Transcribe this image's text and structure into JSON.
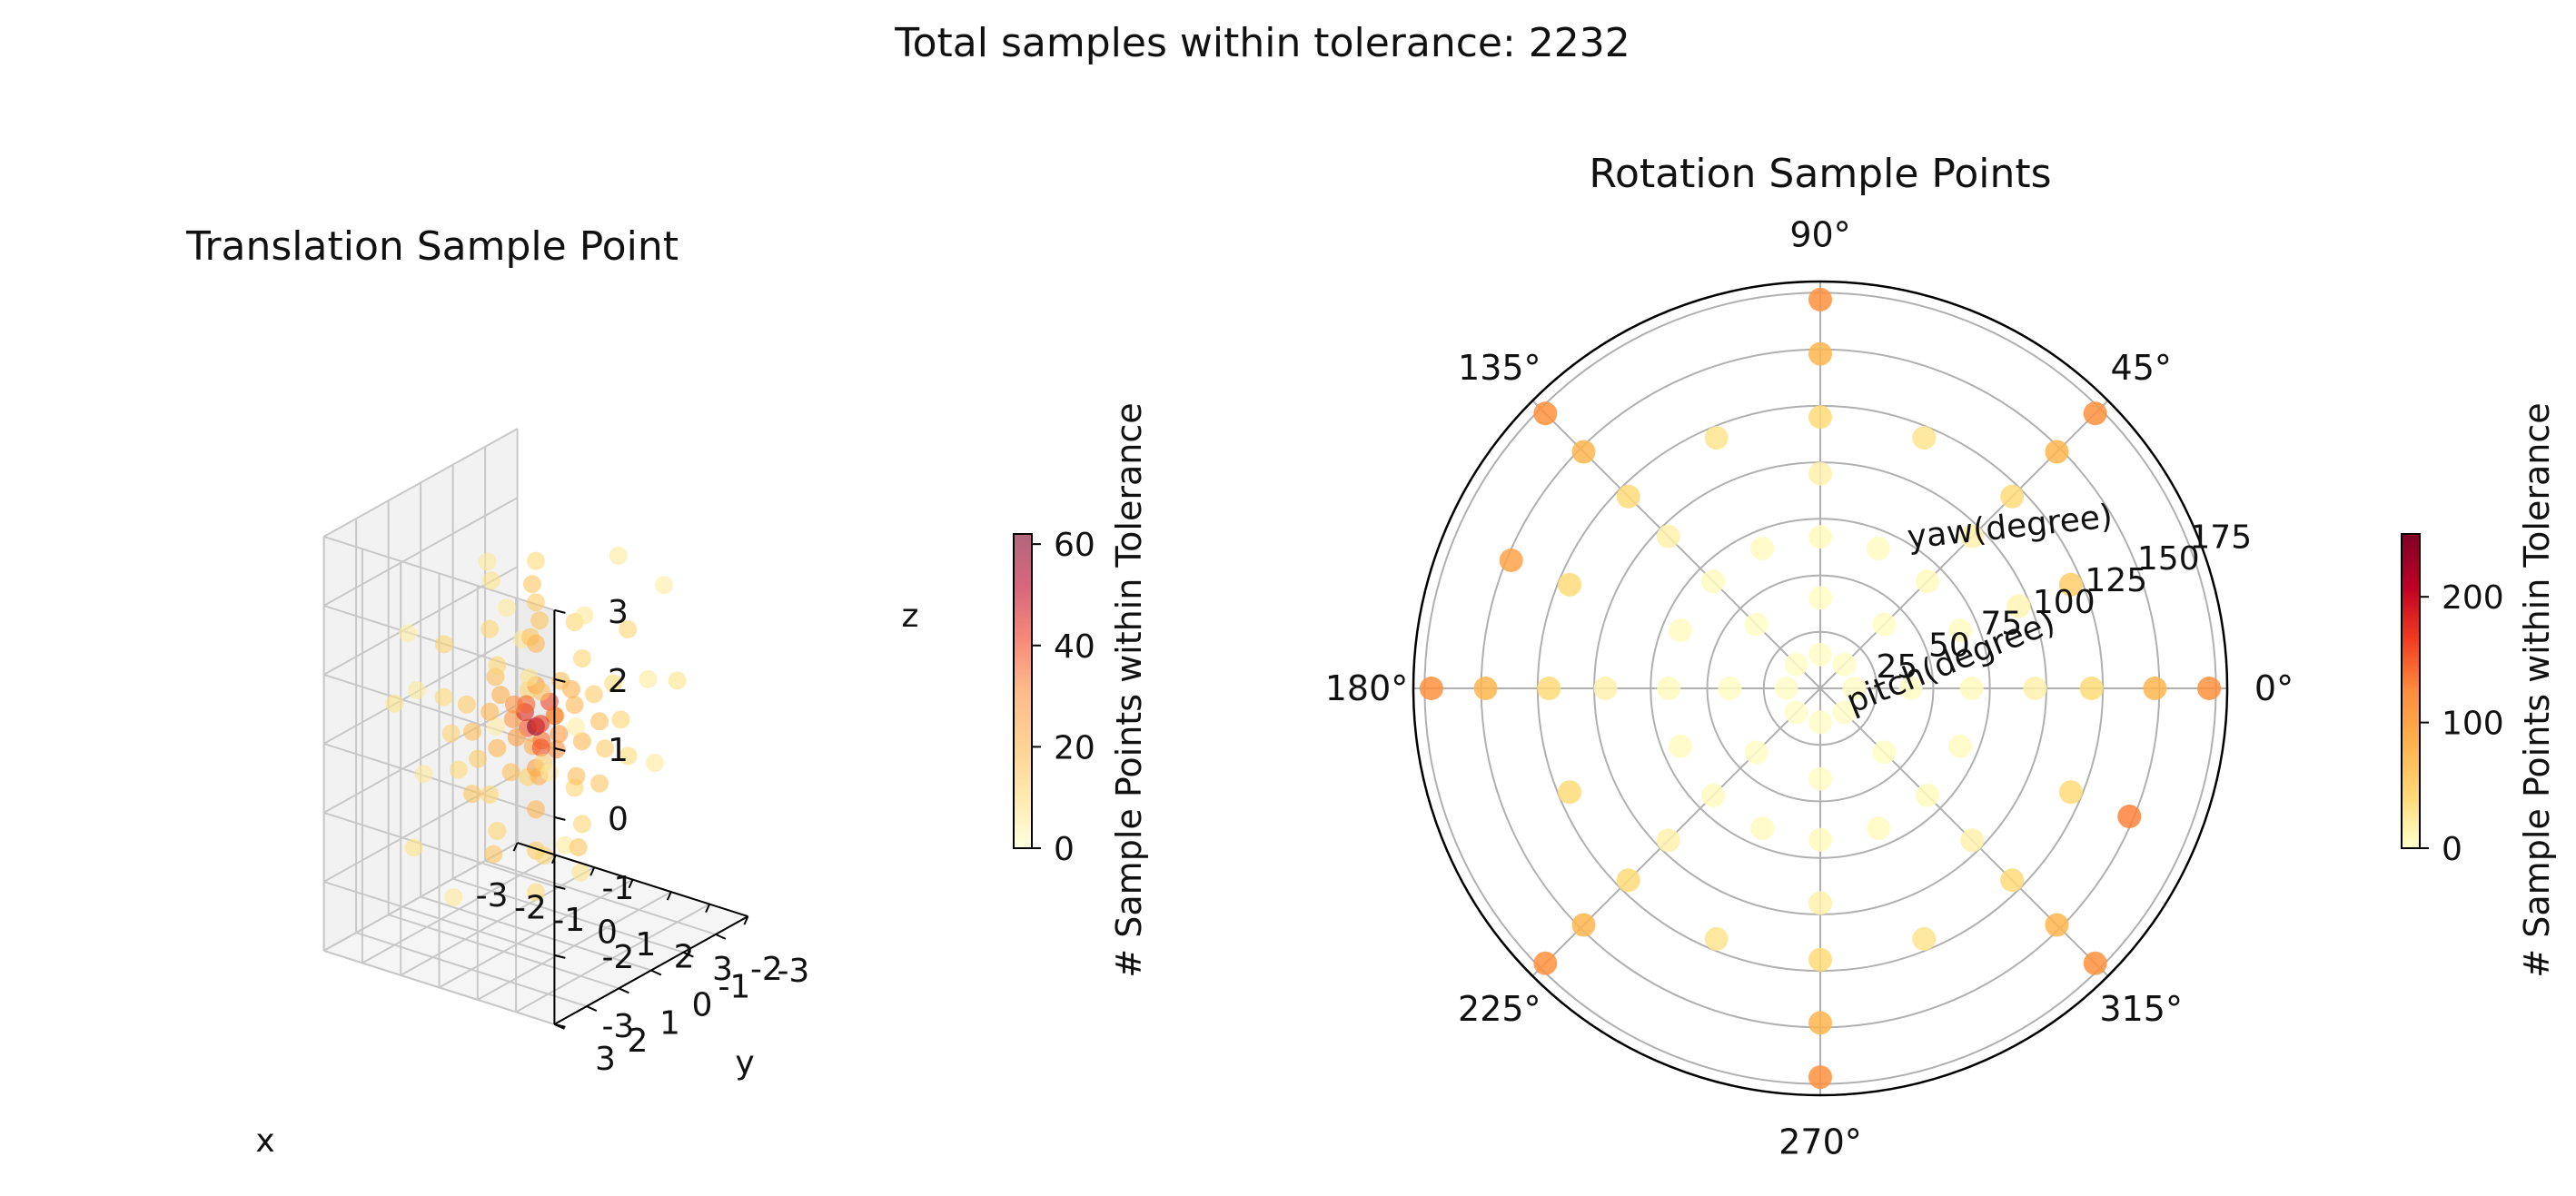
{
  "figure": {
    "suptitle": "Total samples within tolerance: 2232"
  },
  "chart_data": [
    {
      "type": "scatter3d",
      "title": "Translation Sample Point",
      "xlabel": "x",
      "ylabel": "y",
      "zlabel": "z",
      "xlim": [
        -3,
        3
      ],
      "ylim": [
        -3,
        3
      ],
      "zlim": [
        -3,
        3
      ],
      "xticks": [
        "-3",
        "-2",
        "-1",
        "0",
        "1",
        "2",
        "3"
      ],
      "yticks": [
        "-2",
        "-1",
        "0",
        "1",
        "2",
        "3"
      ],
      "yticks_extra": [
        "-3"
      ],
      "zticks": [
        "3",
        "2",
        "1",
        "0",
        "-1",
        "-2",
        "-3"
      ],
      "grid": true,
      "colormap": [
        "#ffffcc",
        "#fed976",
        "#feb24c",
        "#fd8d3c",
        "#f03b20",
        "#bd0026",
        "#800026"
      ],
      "points": [
        {
          "x": 0,
          "y": 0,
          "z": 0,
          "c": 60
        },
        {
          "x": -0.2,
          "y": 0.1,
          "z": 0.2,
          "c": 45
        },
        {
          "x": 0.2,
          "y": 0.1,
          "z": 0.1,
          "c": 42
        },
        {
          "x": 0.1,
          "y": -0.3,
          "z": 0.3,
          "c": 40
        },
        {
          "x": -0.3,
          "y": -0.1,
          "z": -0.1,
          "c": 38
        },
        {
          "x": 0.3,
          "y": 0.2,
          "z": -0.2,
          "c": 38
        },
        {
          "x": 0.0,
          "y": 0.3,
          "z": 0.4,
          "c": 36
        },
        {
          "x": -0.1,
          "y": -0.3,
          "z": -0.3,
          "c": 34
        },
        {
          "x": 0.4,
          "y": -0.1,
          "z": 0.2,
          "c": 32
        },
        {
          "x": -0.4,
          "y": 0.2,
          "z": 0.3,
          "c": 30
        },
        {
          "x": 0.2,
          "y": -0.4,
          "z": -0.4,
          "c": 30
        },
        {
          "x": -0.6,
          "y": 0,
          "z": 0,
          "c": 28
        },
        {
          "x": 0.6,
          "y": 0,
          "z": 0,
          "c": 28
        },
        {
          "x": 0,
          "y": -0.6,
          "z": 0,
          "c": 26
        },
        {
          "x": 0,
          "y": 0.6,
          "z": 0,
          "c": 26
        },
        {
          "x": 0,
          "y": 0,
          "z": 0.6,
          "c": 26
        },
        {
          "x": 0,
          "y": 0,
          "z": -0.6,
          "c": 26
        },
        {
          "x": -0.5,
          "y": 0.5,
          "z": 0.5,
          "c": 22
        },
        {
          "x": 0.5,
          "y": -0.5,
          "z": 0.5,
          "c": 22
        },
        {
          "x": -0.5,
          "y": -0.5,
          "z": -0.5,
          "c": 22
        },
        {
          "x": 0.5,
          "y": 0.5,
          "z": -0.5,
          "c": 22
        },
        {
          "x": -1.2,
          "y": 0,
          "z": 0,
          "c": 20
        },
        {
          "x": 1.2,
          "y": 0,
          "z": 0,
          "c": 20
        },
        {
          "x": 0,
          "y": -1.2,
          "z": 0,
          "c": 20
        },
        {
          "x": 0,
          "y": 1.2,
          "z": 0,
          "c": 20
        },
        {
          "x": 0,
          "y": 0,
          "z": 1.2,
          "c": 20
        },
        {
          "x": 0,
          "y": 0,
          "z": -1.2,
          "c": 20
        },
        {
          "x": -0.9,
          "y": 0.9,
          "z": 0,
          "c": 18
        },
        {
          "x": 0.9,
          "y": -0.9,
          "z": 0,
          "c": 18
        },
        {
          "x": 0.9,
          "y": 0.9,
          "z": 0.9,
          "c": 16
        },
        {
          "x": -0.9,
          "y": -0.9,
          "z": 0.9,
          "c": 16
        },
        {
          "x": -0.9,
          "y": 0.9,
          "z": -0.9,
          "c": 16
        },
        {
          "x": 0.9,
          "y": -0.9,
          "z": -0.9,
          "c": 16
        },
        {
          "x": 0,
          "y": 0,
          "z": 1.8,
          "c": 14
        },
        {
          "x": 0,
          "y": 0,
          "z": -1.8,
          "c": 14
        },
        {
          "x": -1.8,
          "y": 0,
          "z": 0,
          "c": 14
        },
        {
          "x": 1.8,
          "y": 0,
          "z": 0,
          "c": 14
        },
        {
          "x": 0,
          "y": -1.8,
          "z": 0,
          "c": 14
        },
        {
          "x": 0,
          "y": 1.8,
          "z": 0,
          "c": 14
        },
        {
          "x": -1.3,
          "y": 1.3,
          "z": 1.3,
          "c": 12
        },
        {
          "x": 1.3,
          "y": -1.3,
          "z": 1.3,
          "c": 12
        },
        {
          "x": 1.3,
          "y": 1.3,
          "z": -1.3,
          "c": 12
        },
        {
          "x": -1.3,
          "y": -1.3,
          "z": -1.3,
          "c": 12
        },
        {
          "x": 0,
          "y": 0,
          "z": 2.4,
          "c": 10
        },
        {
          "x": 0,
          "y": 0,
          "z": -2.4,
          "c": 10
        },
        {
          "x": -2.4,
          "y": 0,
          "z": 0,
          "c": 10
        },
        {
          "x": 2.4,
          "y": 0,
          "z": 0,
          "c": 10
        },
        {
          "x": 0,
          "y": -2.4,
          "z": 0,
          "c": 10
        },
        {
          "x": 0,
          "y": 2.4,
          "z": 0,
          "c": 10
        },
        {
          "x": -1.2,
          "y": 1.2,
          "z": 0,
          "c": 12
        },
        {
          "x": 1.2,
          "y": -1.2,
          "z": 0,
          "c": 12
        },
        {
          "x": 1.2,
          "y": 1.2,
          "z": 0,
          "c": 12
        },
        {
          "x": -1.2,
          "y": -1.2,
          "z": 0,
          "c": 12
        },
        {
          "x": 0,
          "y": 1.2,
          "z": 1.2,
          "c": 12
        },
        {
          "x": 0,
          "y": -1.2,
          "z": 1.2,
          "c": 12
        },
        {
          "x": 0,
          "y": 1.2,
          "z": -1.2,
          "c": 12
        },
        {
          "x": 0,
          "y": -1.2,
          "z": -1.2,
          "c": 12
        },
        {
          "x": 1.2,
          "y": 0,
          "z": 1.2,
          "c": 12
        },
        {
          "x": -1.2,
          "y": 0,
          "z": 1.2,
          "c": 12
        },
        {
          "x": 1.2,
          "y": 0,
          "z": -1.2,
          "c": 12
        },
        {
          "x": -1.2,
          "y": 0,
          "z": -1.2,
          "c": 12
        },
        {
          "x": -2,
          "y": 2,
          "z": 0.5,
          "c": 8
        },
        {
          "x": 2,
          "y": -2,
          "z": 0.5,
          "c": 8
        },
        {
          "x": -2,
          "y": -1,
          "z": 1.5,
          "c": 8
        },
        {
          "x": 1.5,
          "y": 2,
          "z": 1.5,
          "c": 8
        },
        {
          "x": -1.5,
          "y": 2,
          "z": -1.5,
          "c": 8
        },
        {
          "x": 2,
          "y": 1,
          "z": -1.5,
          "c": 8
        },
        {
          "x": -2.2,
          "y": -2.2,
          "z": 0.3,
          "c": 6
        },
        {
          "x": 2.2,
          "y": 2.2,
          "z": 0.3,
          "c": 6
        },
        {
          "x": -1,
          "y": 2.5,
          "z": 1,
          "c": 6
        },
        {
          "x": 1,
          "y": -2.5,
          "z": -1,
          "c": 6
        },
        {
          "x": 2.5,
          "y": -0.5,
          "z": 1,
          "c": 6
        },
        {
          "x": -2.5,
          "y": 0.5,
          "z": -1,
          "c": 6
        },
        {
          "x": 0.5,
          "y": 1.5,
          "z": 2.2,
          "c": 6
        },
        {
          "x": -0.5,
          "y": -1.5,
          "z": -2.2,
          "c": 6
        },
        {
          "x": 1.6,
          "y": 0.4,
          "z": 2.0,
          "c": 6
        },
        {
          "x": -1.6,
          "y": -0.4,
          "z": 2.0,
          "c": 6
        },
        {
          "x": 0.8,
          "y": -1.6,
          "z": 2.2,
          "c": 6
        },
        {
          "x": -0.8,
          "y": 1.6,
          "z": -2.2,
          "c": 6
        },
        {
          "x": 2.3,
          "y": 1.5,
          "z": 0.8,
          "c": 5
        },
        {
          "x": -2.3,
          "y": -1.5,
          "z": -0.8,
          "c": 5
        },
        {
          "x": 1.4,
          "y": -2.3,
          "z": 1.7,
          "c": 5
        },
        {
          "x": -1.4,
          "y": 2.3,
          "z": 1.7,
          "c": 5
        },
        {
          "x": 0.6,
          "y": 0.6,
          "z": 1.8,
          "c": 16
        },
        {
          "x": -0.6,
          "y": -0.6,
          "z": 1.8,
          "c": 16
        },
        {
          "x": 0.6,
          "y": -0.6,
          "z": -1.8,
          "c": 16
        },
        {
          "x": -0.6,
          "y": 0.6,
          "z": -1.8,
          "c": 16
        },
        {
          "x": -0.3,
          "y": 0.9,
          "z": 0.9,
          "c": 18
        },
        {
          "x": 0.3,
          "y": -0.9,
          "z": -0.9,
          "c": 18
        },
        {
          "x": 0.9,
          "y": 0.3,
          "z": 0.9,
          "c": 18
        },
        {
          "x": -0.9,
          "y": -0.3,
          "z": -0.9,
          "c": 18
        }
      ],
      "colorbar": {
        "label": "# Sample Points within Tolerance",
        "min": 0,
        "max": 62,
        "ticks": [
          "0",
          "20",
          "40",
          "60"
        ],
        "tick_values": [
          0,
          20,
          40,
          60
        ],
        "alpha": 0.6
      }
    },
    {
      "type": "polar_scatter",
      "title": "Rotation Sample Points",
      "theta_ticks": [
        "0°",
        "45°",
        "90°",
        "135°",
        "180°",
        "225°",
        "270°",
        "315°"
      ],
      "radial_label": "pitch(degree)",
      "angular_label": "yaw(degree)",
      "r_ticks": [
        "25",
        "50",
        "75",
        "100",
        "125",
        "150",
        "175"
      ],
      "r_tick_values": [
        25,
        50,
        75,
        100,
        125,
        150,
        175
      ],
      "rlim": [
        0,
        180
      ],
      "grid": true,
      "colormap": [
        "#ffffcc",
        "#fed976",
        "#feb24c",
        "#fd8d3c",
        "#f03b20",
        "#bd0026",
        "#800026"
      ],
      "points": [
        {
          "theta": 0,
          "r": 15,
          "c": 2
        },
        {
          "theta": 45,
          "r": 15,
          "c": 2
        },
        {
          "theta": 90,
          "r": 15,
          "c": 2
        },
        {
          "theta": 135,
          "r": 15,
          "c": 2
        },
        {
          "theta": 180,
          "r": 15,
          "c": 2
        },
        {
          "theta": 225,
          "r": 15,
          "c": 2
        },
        {
          "theta": 270,
          "r": 15,
          "c": 2
        },
        {
          "theta": 315,
          "r": 15,
          "c": 2
        },
        {
          "theta": 0,
          "r": 40,
          "c": 3
        },
        {
          "theta": 45,
          "r": 40,
          "c": 3
        },
        {
          "theta": 90,
          "r": 40,
          "c": 3
        },
        {
          "theta": 135,
          "r": 40,
          "c": 3
        },
        {
          "theta": 180,
          "r": 40,
          "c": 3
        },
        {
          "theta": 225,
          "r": 40,
          "c": 3
        },
        {
          "theta": 270,
          "r": 40,
          "c": 3
        },
        {
          "theta": 315,
          "r": 40,
          "c": 3
        },
        {
          "theta": 0,
          "r": 67,
          "c": 6
        },
        {
          "theta": 45,
          "r": 67,
          "c": 6
        },
        {
          "theta": 90,
          "r": 67,
          "c": 6
        },
        {
          "theta": 135,
          "r": 67,
          "c": 6
        },
        {
          "theta": 180,
          "r": 67,
          "c": 6
        },
        {
          "theta": 225,
          "r": 67,
          "c": 6
        },
        {
          "theta": 270,
          "r": 67,
          "c": 6
        },
        {
          "theta": 315,
          "r": 67,
          "c": 6
        },
        {
          "theta": 0,
          "r": 95,
          "c": 15
        },
        {
          "theta": 45,
          "r": 95,
          "c": 15
        },
        {
          "theta": 90,
          "r": 95,
          "c": 15
        },
        {
          "theta": 135,
          "r": 95,
          "c": 15
        },
        {
          "theta": 180,
          "r": 95,
          "c": 15
        },
        {
          "theta": 225,
          "r": 95,
          "c": 15
        },
        {
          "theta": 270,
          "r": 95,
          "c": 15
        },
        {
          "theta": 315,
          "r": 95,
          "c": 15
        },
        {
          "theta": 0,
          "r": 120,
          "c": 40
        },
        {
          "theta": 45,
          "r": 120,
          "c": 40
        },
        {
          "theta": 90,
          "r": 120,
          "c": 40
        },
        {
          "theta": 135,
          "r": 120,
          "c": 40
        },
        {
          "theta": 180,
          "r": 120,
          "c": 40
        },
        {
          "theta": 225,
          "r": 120,
          "c": 40
        },
        {
          "theta": 270,
          "r": 120,
          "c": 40
        },
        {
          "theta": 315,
          "r": 120,
          "c": 40
        },
        {
          "theta": 0,
          "r": 148,
          "c": 80
        },
        {
          "theta": 45,
          "r": 148,
          "c": 80
        },
        {
          "theta": 90,
          "r": 148,
          "c": 80
        },
        {
          "theta": 135,
          "r": 148,
          "c": 80
        },
        {
          "theta": 180,
          "r": 148,
          "c": 80
        },
        {
          "theta": 225,
          "r": 148,
          "c": 80
        },
        {
          "theta": 270,
          "r": 148,
          "c": 80
        },
        {
          "theta": 315,
          "r": 148,
          "c": 80
        },
        {
          "theta": 0,
          "r": 172,
          "c": 120
        },
        {
          "theta": 45,
          "r": 172,
          "c": 120
        },
        {
          "theta": 90,
          "r": 172,
          "c": 120
        },
        {
          "theta": 135,
          "r": 172,
          "c": 120
        },
        {
          "theta": 180,
          "r": 172,
          "c": 120
        },
        {
          "theta": 225,
          "r": 172,
          "c": 120
        },
        {
          "theta": 270,
          "r": 172,
          "c": 120
        },
        {
          "theta": 315,
          "r": 172,
          "c": 120
        },
        {
          "theta": 22.5,
          "r": 120,
          "c": 55
        },
        {
          "theta": 337.5,
          "r": 120,
          "c": 40
        },
        {
          "theta": 157.5,
          "r": 120,
          "c": 40
        },
        {
          "theta": 202.5,
          "r": 120,
          "c": 40
        },
        {
          "theta": 67.5,
          "r": 120,
          "c": 30
        },
        {
          "theta": 112.5,
          "r": 120,
          "c": 30
        },
        {
          "theta": 247.5,
          "r": 120,
          "c": 30
        },
        {
          "theta": 292.5,
          "r": 120,
          "c": 30
        },
        {
          "theta": 22.5,
          "r": 67,
          "c": 5
        },
        {
          "theta": 67.5,
          "r": 67,
          "c": 5
        },
        {
          "theta": 112.5,
          "r": 67,
          "c": 5
        },
        {
          "theta": 157.5,
          "r": 67,
          "c": 5
        },
        {
          "theta": 202.5,
          "r": 67,
          "c": 5
        },
        {
          "theta": 247.5,
          "r": 67,
          "c": 5
        },
        {
          "theta": 292.5,
          "r": 67,
          "c": 5
        },
        {
          "theta": 337.5,
          "r": 67,
          "c": 5
        },
        {
          "theta": 22.5,
          "r": 95,
          "c": 12
        },
        {
          "theta": 157.5,
          "r": 148,
          "c": 100
        },
        {
          "theta": 337.5,
          "r": 148,
          "c": 130
        }
      ],
      "colorbar": {
        "label": "# Sample Points within Tolerance",
        "min": 0,
        "max": 250,
        "ticks": [
          "0",
          "100",
          "200"
        ],
        "tick_values": [
          0,
          100,
          200
        ],
        "alpha": 1.0
      }
    }
  ]
}
